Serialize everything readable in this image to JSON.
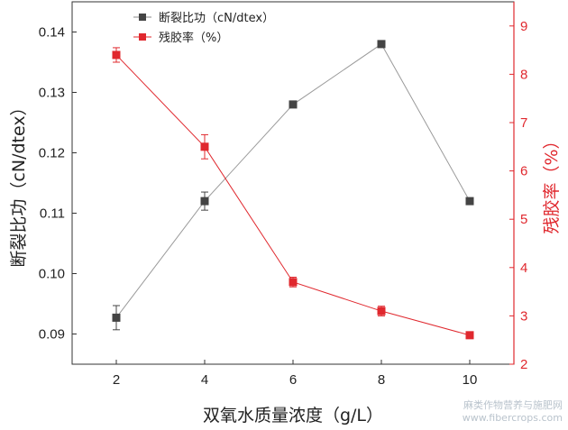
{
  "chart_data": {
    "type": "line",
    "xlabel": "双氧水质量浓度（g/L）",
    "ylabel_left": "断裂比功（cN/dtex）",
    "ylabel_right": "残胶率（%）",
    "x": [
      2,
      4,
      6,
      8,
      10
    ],
    "xlim": [
      1,
      11
    ],
    "ylim_left": [
      0.085,
      0.145
    ],
    "ylim_right": [
      2,
      9.5
    ],
    "xticks": [
      "2",
      "4",
      "6",
      "8",
      "10"
    ],
    "yticks_left": [
      "0.09",
      "0.10",
      "0.11",
      "0.12",
      "0.13",
      "0.14"
    ],
    "yticks_right": [
      "2",
      "3",
      "4",
      "5",
      "6",
      "7",
      "8",
      "9"
    ],
    "legend_position": "top-left",
    "series": [
      {
        "name": "断裂比功（cN/dtex）",
        "axis": "left",
        "color": "#444444",
        "values": [
          0.0927,
          0.112,
          0.128,
          0.138,
          0.112
        ],
        "errors": [
          0.002,
          0.0015,
          0.0005,
          0.0005,
          0.0005
        ]
      },
      {
        "name": "残胶率（%）",
        "axis": "right",
        "color": "#e0282e",
        "values": [
          8.4,
          6.5,
          3.7,
          3.1,
          2.6
        ],
        "errors": [
          0.15,
          0.25,
          0.1,
          0.1,
          0.07
        ]
      }
    ]
  },
  "watermark": {
    "line1": "麻类作物营养与施肥网",
    "line2": "www.fibercrops.com"
  }
}
